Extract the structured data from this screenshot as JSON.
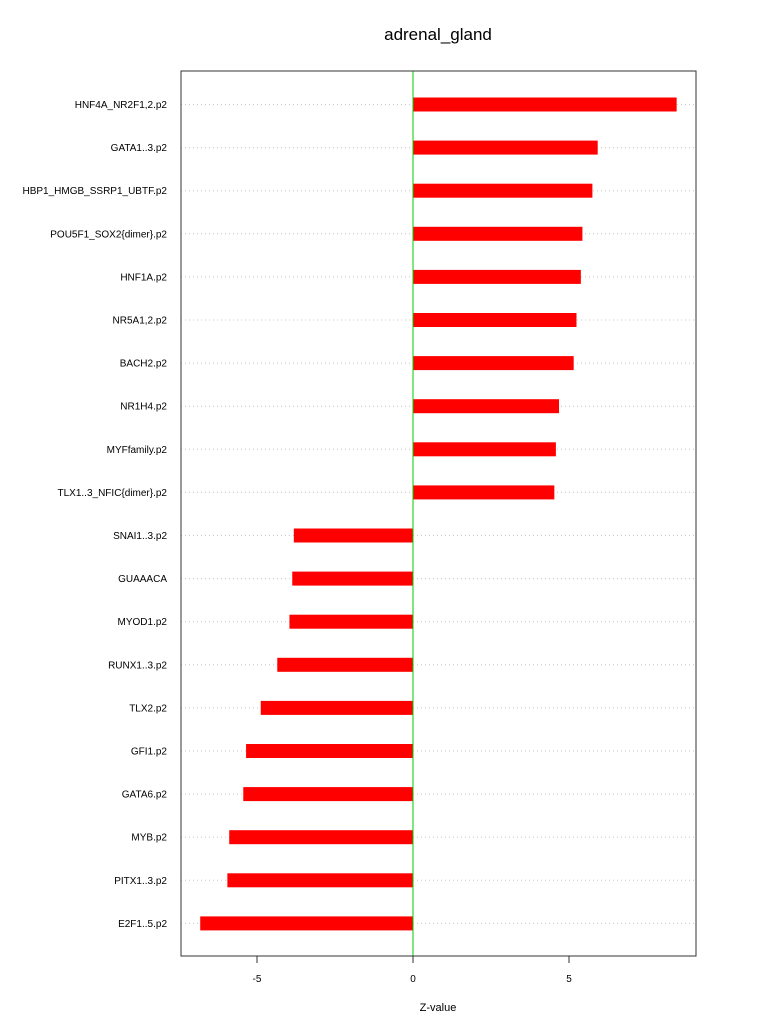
{
  "chart_data": {
    "type": "bar",
    "orientation": "horizontal",
    "title": "adrenal_gland",
    "xlabel": "Z-value",
    "ylabel": "",
    "xlim": [
      -7.5,
      9.1
    ],
    "xticks": [
      -5,
      0,
      5
    ],
    "xtick_labels": [
      "-5",
      "0",
      "5"
    ],
    "grid": true,
    "zero_line_color": "#00cc00",
    "bar_color": "#ff0000",
    "categories": [
      "HNF4A_NR2F1,2.p2",
      "GATA1..3.p2",
      "HBP1_HMGB_SSRP1_UBTF.p2",
      "POU5F1_SOX2{dimer}.p2",
      "HNF1A.p2",
      "NR5A1,2.p2",
      "BACH2.p2",
      "NR1H4.p2",
      "MYFfamily.p2",
      "TLX1..3_NFIC{dimer}.p2",
      "SNAI1..3.p2",
      "GUAAACA",
      "MYOD1.p2",
      "RUNX1..3.p2",
      "TLX2.p2",
      "GFI1.p2",
      "GATA6.p2",
      "MYB.p2",
      "PITX1..3.p2",
      "E2F1..5.p2"
    ],
    "values": [
      8.45,
      5.92,
      5.75,
      5.43,
      5.38,
      5.24,
      5.15,
      4.68,
      4.58,
      4.53,
      -3.82,
      -3.87,
      -3.96,
      -4.35,
      -4.88,
      -5.35,
      -5.44,
      -5.89,
      -5.95,
      -6.82
    ]
  }
}
